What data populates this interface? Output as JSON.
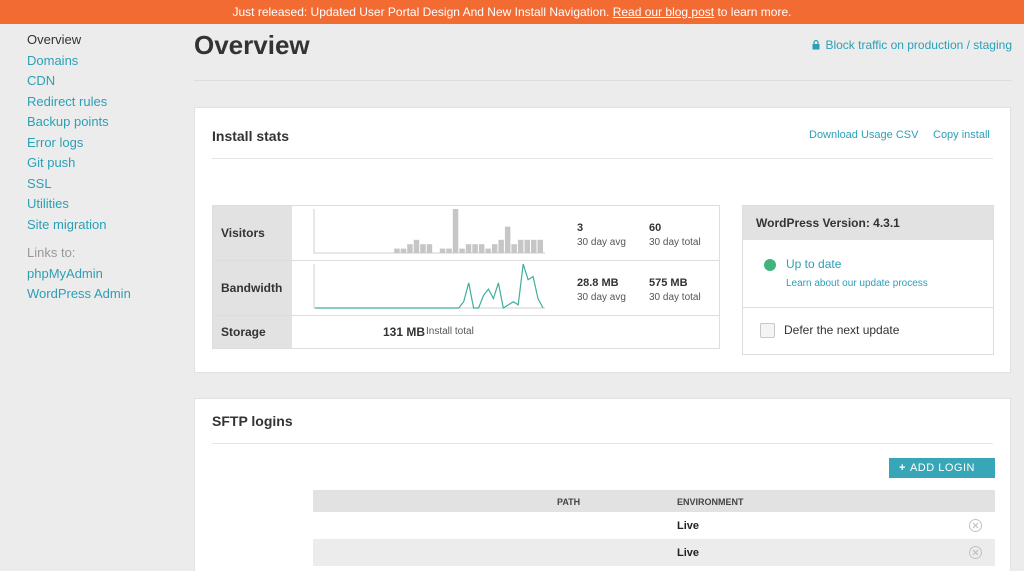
{
  "banner": {
    "text": "Just released: Updated User Portal Design And New Install Navigation. ",
    "link": "Read our blog post",
    "tail": " to learn more."
  },
  "sidebar": {
    "items": [
      "Overview",
      "Domains",
      "CDN",
      "Redirect rules",
      "Backup points",
      "Error logs",
      "Git push",
      "SSL",
      "Utilities",
      "Site migration"
    ],
    "links_label": "Links to:",
    "links": [
      "phpMyAdmin",
      "WordPress Admin"
    ]
  },
  "header": {
    "title": "Overview",
    "block_traffic": "Block traffic on production / staging"
  },
  "install_stats": {
    "title": "Install stats",
    "download_csv": "Download Usage CSV",
    "copy_install": "Copy install",
    "rows": {
      "visitors": {
        "label": "Visitors",
        "val1": "3",
        "sub1": "30 day avg",
        "val2": "60",
        "sub2": "30 day total"
      },
      "bandwidth": {
        "label": "Bandwidth",
        "val1": "28.8 MB",
        "sub1": "30 day avg",
        "val2": "575 MB",
        "sub2": "30 day total"
      },
      "storage": {
        "label": "Storage",
        "val": "131 MB",
        "sub": "Install total"
      }
    },
    "visitors_series": [
      0,
      0,
      0,
      0,
      0,
      0,
      0,
      0,
      0,
      0,
      0,
      0,
      1,
      1,
      2,
      3,
      2,
      2,
      0,
      1,
      1,
      10,
      1,
      2,
      2,
      2,
      1,
      2,
      3,
      6,
      2,
      3,
      3,
      3,
      3
    ],
    "bandwidth_series": [
      0,
      0,
      0,
      0,
      0,
      0,
      0,
      0,
      0,
      0,
      0,
      0,
      0,
      0,
      0,
      0,
      0,
      0,
      0,
      0,
      0,
      0,
      0,
      0,
      0,
      0,
      0,
      0,
      0,
      0,
      2,
      8,
      0,
      0,
      4,
      6,
      3,
      8,
      0,
      1,
      2,
      1,
      14,
      9,
      10,
      3,
      0
    ]
  },
  "wordpress": {
    "version_label": "WordPress Version: 4.3.1",
    "status": "Up to date",
    "learn": "Learn about our update process",
    "defer": "Defer the next update"
  },
  "sftp": {
    "title": "SFTP logins",
    "add_login": "ADD LOGIN",
    "headers": {
      "path": "PATH",
      "environment": "ENVIRONMENT"
    },
    "rows": [
      {
        "path": "",
        "environment": "Live"
      },
      {
        "path": "",
        "environment": "Live"
      }
    ]
  },
  "colors": {
    "accent": "#2c9fb5",
    "banner": "#f26b33",
    "status_ok": "#3fb57d"
  }
}
